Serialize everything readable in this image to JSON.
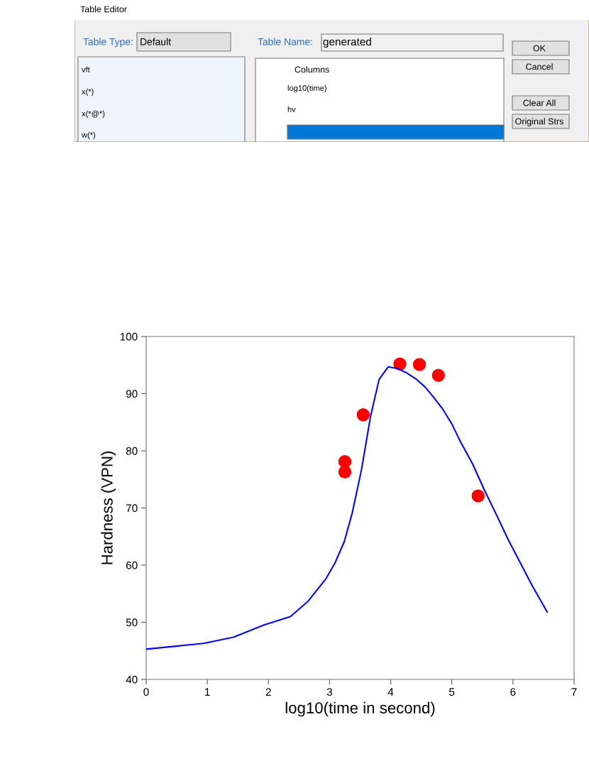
{
  "chart_data": [
    {
      "type": "other",
      "title": "Table Editor",
      "annotations": [
        "Table Type:",
        "Default",
        "Table Name:",
        "generated",
        "vft",
        "x(*)",
        "x(*@*)",
        "w(*)",
        "Columns",
        "log10(time)",
        "hv",
        "OK",
        "Cancel",
        "Clear All",
        "Original Strs"
      ]
    },
    {
      "type": "line",
      "xlabel": "log10(time in second)",
      "ylabel": "Hardness (VPN)",
      "xlim": [
        0,
        7
      ],
      "xticks": [
        0,
        1,
        2,
        3,
        4,
        5,
        6,
        7
      ],
      "ylim": [
        40,
        100
      ],
      "yticks": [
        40,
        50,
        60,
        70,
        80,
        90,
        100
      ],
      "grid": false,
      "series": [
        {
          "type": "line",
          "color": "#0000ff",
          "marker": "none",
          "line_style": "solid",
          "x": [
            0,
            0.94,
            1.43,
            1.92,
            2.36,
            2.65,
            2.94,
            3.09,
            3.24,
            3.37,
            3.52,
            3.67,
            3.81,
            3.96,
            4.11,
            4.25,
            4.41,
            4.56,
            4.7,
            4.85,
            5.0,
            5.14,
            5.34,
            5.53,
            5.73,
            5.92,
            6.12,
            6.31,
            6.56
          ],
          "values": [
            45.3,
            46.3,
            47.4,
            49.5,
            51.0,
            53.7,
            57.6,
            60.4,
            64.1,
            69.1,
            76.6,
            86.0,
            92.5,
            94.7,
            94.4,
            93.7,
            92.6,
            91.2,
            89.4,
            87.3,
            84.7,
            81.6,
            77.7,
            73.2,
            68.8,
            64.5,
            60.4,
            56.5,
            51.8
          ]
        },
        {
          "type": "scatter",
          "color": "#ff0000",
          "marker": "circle",
          "x": [
            3.25,
            3.25,
            3.55,
            4.15,
            4.47,
            4.78,
            5.43
          ],
          "values": [
            78.1,
            76.3,
            86.3,
            95.2,
            95.1,
            93.2,
            72.1
          ]
        }
      ]
    }
  ]
}
